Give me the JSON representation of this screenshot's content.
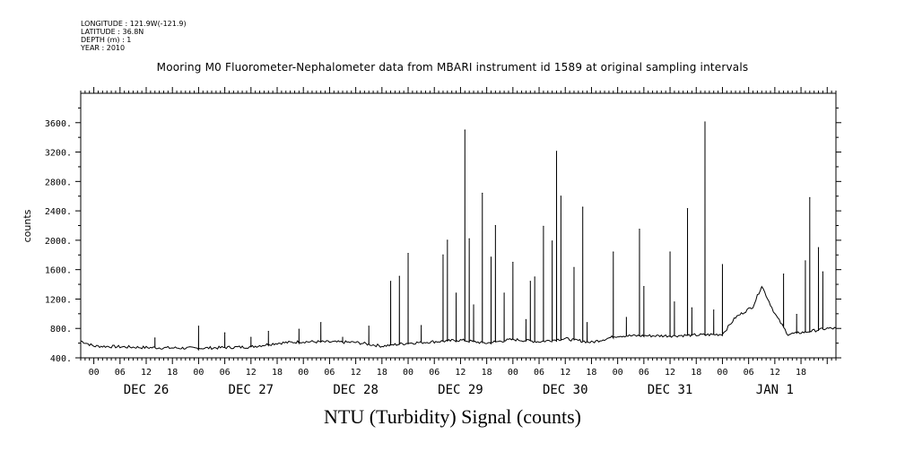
{
  "meta": {
    "longitude": "LONGITUDE : 121.9W(-121.9)",
    "latitude": "LATITUDE : 36.8N",
    "depth": "DEPTH (m) : 1",
    "year": "YEAR : 2010"
  },
  "chart_data": {
    "type": "line",
    "title": "Mooring M0 Fluorometer-Nephalometer data from MBARI instrument id 1589 at original sampling intervals",
    "xlabel": "NTU (Turbidity) Signal (counts)",
    "ylabel": "counts",
    "ylim": [
      400,
      4000
    ],
    "yticks": [
      "400.",
      "800.",
      "1200.",
      "1600.",
      "2000.",
      "2400.",
      "2800.",
      "3200.",
      "3600."
    ],
    "xlim": [
      "2010-12-25T21:00",
      "2011-01-02T02:00"
    ],
    "hour_ticks": [
      "00",
      "06",
      "12",
      "18",
      "00",
      "06",
      "12",
      "18",
      "00",
      "06",
      "12",
      "18",
      "00",
      "06",
      "12",
      "18",
      "00",
      "06",
      "12",
      "18",
      "00",
      "06",
      "12",
      "18",
      "00",
      "06",
      "12",
      "18"
    ],
    "day_labels": [
      "DEC 26",
      "DEC 27",
      "DEC 28",
      "DEC 29",
      "DEC 30",
      "DEC 31",
      "JAN  1"
    ],
    "grid": false,
    "baseline": [
      [
        "2010-12-25T21:00",
        630
      ],
      [
        "2010-12-26T00:00",
        560
      ],
      [
        "2010-12-26T12:00",
        540
      ],
      [
        "2010-12-27T00:00",
        530
      ],
      [
        "2010-12-27T12:00",
        550
      ],
      [
        "2010-12-27T18:00",
        600
      ],
      [
        "2010-12-28T00:00",
        620
      ],
      [
        "2010-12-28T12:00",
        610
      ],
      [
        "2010-12-28T18:00",
        560
      ],
      [
        "2010-12-29T00:00",
        600
      ],
      [
        "2010-12-29T12:00",
        640
      ],
      [
        "2010-12-29T18:00",
        600
      ],
      [
        "2010-12-30T00:00",
        650
      ],
      [
        "2010-12-30T06:00",
        620
      ],
      [
        "2010-12-30T12:00",
        660
      ],
      [
        "2010-12-30T18:00",
        610
      ],
      [
        "2010-12-31T00:00",
        700
      ],
      [
        "2010-12-31T12:00",
        700
      ],
      [
        "2011-01-01T00:00",
        720
      ],
      [
        "2011-01-01T03:00",
        950
      ],
      [
        "2011-01-01T07:00",
        1100
      ],
      [
        "2011-01-01T09:00",
        1380
      ],
      [
        "2011-01-01T12:00",
        1000
      ],
      [
        "2011-01-01T15:00",
        720
      ],
      [
        "2011-01-01T20:00",
        760
      ],
      [
        "2011-01-02T00:00",
        800
      ]
    ],
    "spikes": [
      [
        "2010-12-26T14:00",
        670
      ],
      [
        "2010-12-27T00:00",
        830
      ],
      [
        "2010-12-27T06:00",
        740
      ],
      [
        "2010-12-27T12:00",
        680
      ],
      [
        "2010-12-27T16:00",
        760
      ],
      [
        "2010-12-27T23:00",
        790
      ],
      [
        "2010-12-28T04:00",
        880
      ],
      [
        "2010-12-28T09:00",
        680
      ],
      [
        "2010-12-28T15:00",
        830
      ],
      [
        "2010-12-28T20:00",
        1440
      ],
      [
        "2010-12-28T22:00",
        1510
      ],
      [
        "2010-12-29T00:00",
        1820
      ],
      [
        "2010-12-29T03:00",
        840
      ],
      [
        "2010-12-29T08:00",
        1800
      ],
      [
        "2010-12-29T09:00",
        2000
      ],
      [
        "2010-12-29T11:00",
        1280
      ],
      [
        "2010-12-29T13:00",
        3500
      ],
      [
        "2010-12-29T14:00",
        2020
      ],
      [
        "2010-12-29T15:00",
        1120
      ],
      [
        "2010-12-29T17:00",
        2640
      ],
      [
        "2010-12-29T19:00",
        1770
      ],
      [
        "2010-12-29T20:00",
        2200
      ],
      [
        "2010-12-29T22:00",
        1280
      ],
      [
        "2010-12-30T00:00",
        1700
      ],
      [
        "2010-12-30T03:00",
        920
      ],
      [
        "2010-12-30T04:00",
        1440
      ],
      [
        "2010-12-30T05:00",
        1500
      ],
      [
        "2010-12-30T07:00",
        2190
      ],
      [
        "2010-12-30T09:00",
        1990
      ],
      [
        "2010-12-30T10:00",
        3210
      ],
      [
        "2010-12-30T11:00",
        2600
      ],
      [
        "2010-12-30T14:00",
        1630
      ],
      [
        "2010-12-30T16:00",
        2450
      ],
      [
        "2010-12-30T17:00",
        880
      ],
      [
        "2010-12-30T23:00",
        1840
      ],
      [
        "2010-12-31T02:00",
        950
      ],
      [
        "2010-12-31T05:00",
        2150
      ],
      [
        "2010-12-31T06:00",
        1370
      ],
      [
        "2010-12-31T12:00",
        1840
      ],
      [
        "2010-12-31T13:00",
        1160
      ],
      [
        "2010-12-31T16:00",
        2430
      ],
      [
        "2010-12-31T17:00",
        1080
      ],
      [
        "2010-12-31T20:00",
        3610
      ],
      [
        "2010-12-31T22:00",
        1050
      ],
      [
        "2011-01-01T00:00",
        1670
      ],
      [
        "2011-01-01T14:00",
        1540
      ],
      [
        "2011-01-01T17:00",
        990
      ],
      [
        "2011-01-01T19:00",
        1720
      ],
      [
        "2011-01-01T20:00",
        2580
      ],
      [
        "2011-01-01T22:00",
        1900
      ],
      [
        "2011-01-01T23:00",
        1570
      ]
    ]
  }
}
